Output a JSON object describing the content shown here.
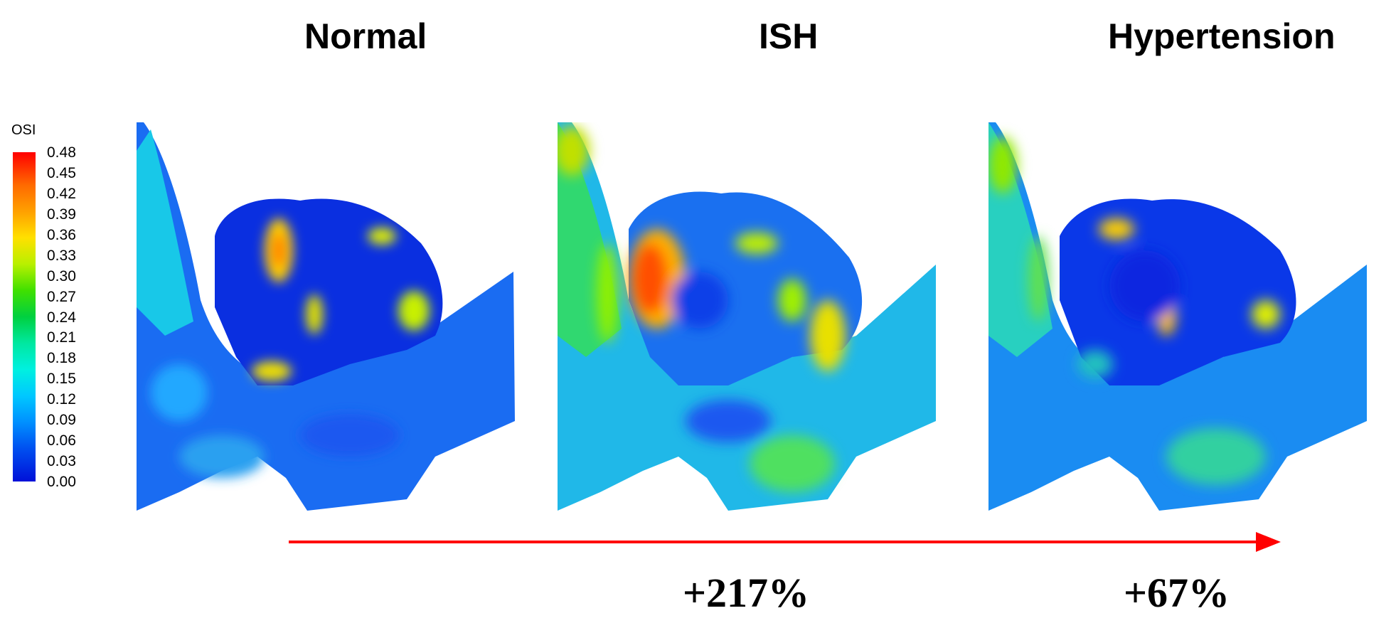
{
  "titles": {
    "normal": "Normal",
    "ish": "ISH",
    "hypertension": "Hypertension"
  },
  "legend": {
    "title": "OSI",
    "ticks": [
      "0.48",
      "0.45",
      "0.42",
      "0.39",
      "0.36",
      "0.33",
      "0.30",
      "0.27",
      "0.24",
      "0.21",
      "0.18",
      "0.15",
      "0.12",
      "0.09",
      "0.06",
      "0.03",
      "0.00"
    ]
  },
  "changes": {
    "ish": "+217%",
    "hypertension": "+67%"
  },
  "colors": {
    "arrow": "#ff0000",
    "low": "#0018d8",
    "high": "#ff0000"
  }
}
